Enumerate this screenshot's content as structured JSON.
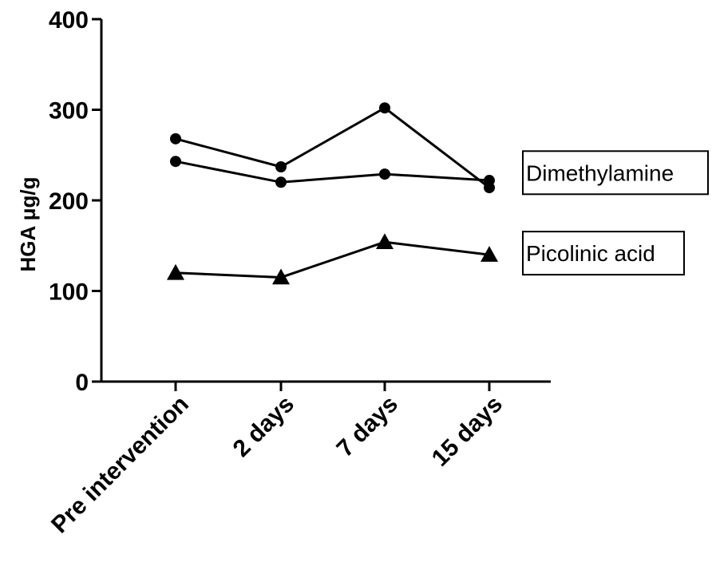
{
  "chart_data": {
    "type": "line",
    "title": "",
    "xlabel": "",
    "ylabel": "HGA μg/g",
    "ylim": [
      0,
      400
    ],
    "yticks": [
      0,
      100,
      200,
      300,
      400
    ],
    "categories": [
      "Pre intervention",
      "2 days",
      "7 days",
      "15 days"
    ],
    "series": [
      {
        "group": "Dimethylamine",
        "marker": "circle",
        "values": [
          268,
          237,
          302,
          214
        ]
      },
      {
        "group": "Dimethylamine",
        "marker": "circle",
        "values": [
          243,
          220,
          229,
          222
        ]
      },
      {
        "group": "Picolinic acid",
        "marker": "triangle",
        "values": [
          120,
          115,
          154,
          140
        ]
      }
    ],
    "annotations": [
      {
        "text": "Dimethylamine",
        "near_value": 220
      },
      {
        "text": "Picolinic acid",
        "near_value": 140
      }
    ],
    "grid": false,
    "legend": "right"
  }
}
